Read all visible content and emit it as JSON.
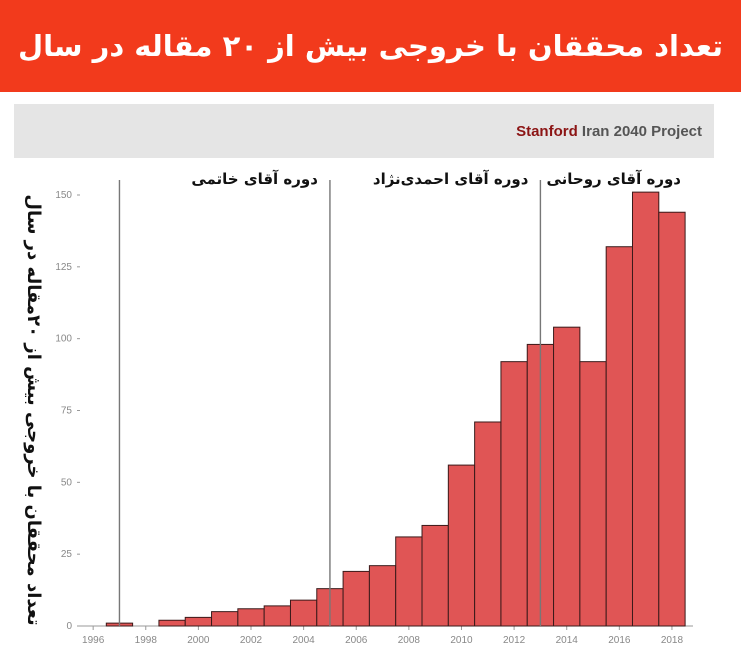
{
  "banner": {
    "title": "تعداد محققان با خروجی بیش از ۲۰ مقاله در سال"
  },
  "project": {
    "brand": "Stanford",
    "rest": " Iran 2040 Project"
  },
  "colors": {
    "banner": "#f23a1c",
    "bar_fill": "#e05555",
    "bar_stroke": "#3a1a1a"
  },
  "chart_data": {
    "type": "bar",
    "ylabel_lines": [
      "تعداد محققان با خروجی بیش از ۲۰",
      "مقاله در سال"
    ],
    "x": [
      1997,
      1998,
      1999,
      2000,
      2001,
      2002,
      2003,
      2004,
      2005,
      2006,
      2007,
      2008,
      2009,
      2010,
      2011,
      2012,
      2013,
      2014,
      2015,
      2016,
      2017,
      2018
    ],
    "values": [
      1,
      0,
      2,
      3,
      5,
      6,
      7,
      9,
      13,
      19,
      21,
      31,
      35,
      56,
      71,
      92,
      98,
      104,
      92,
      132,
      151,
      144
    ],
    "xlim": [
      1995.5,
      2018.8
    ],
    "ylim": [
      0,
      155
    ],
    "x_ticks": [
      1996,
      1998,
      2000,
      2002,
      2004,
      2006,
      2008,
      2010,
      2012,
      2014,
      2016,
      2018
    ],
    "y_ticks": [
      0,
      25,
      50,
      75,
      100,
      125,
      150
    ],
    "eras": [
      {
        "label": "دوره آقای خاتمی",
        "start": 1997
      },
      {
        "label": "دوره آقای احمدی‌نژاد",
        "start": 2005
      },
      {
        "label": "دوره آقای روحانی",
        "start": 2013
      }
    ],
    "grid": false
  }
}
